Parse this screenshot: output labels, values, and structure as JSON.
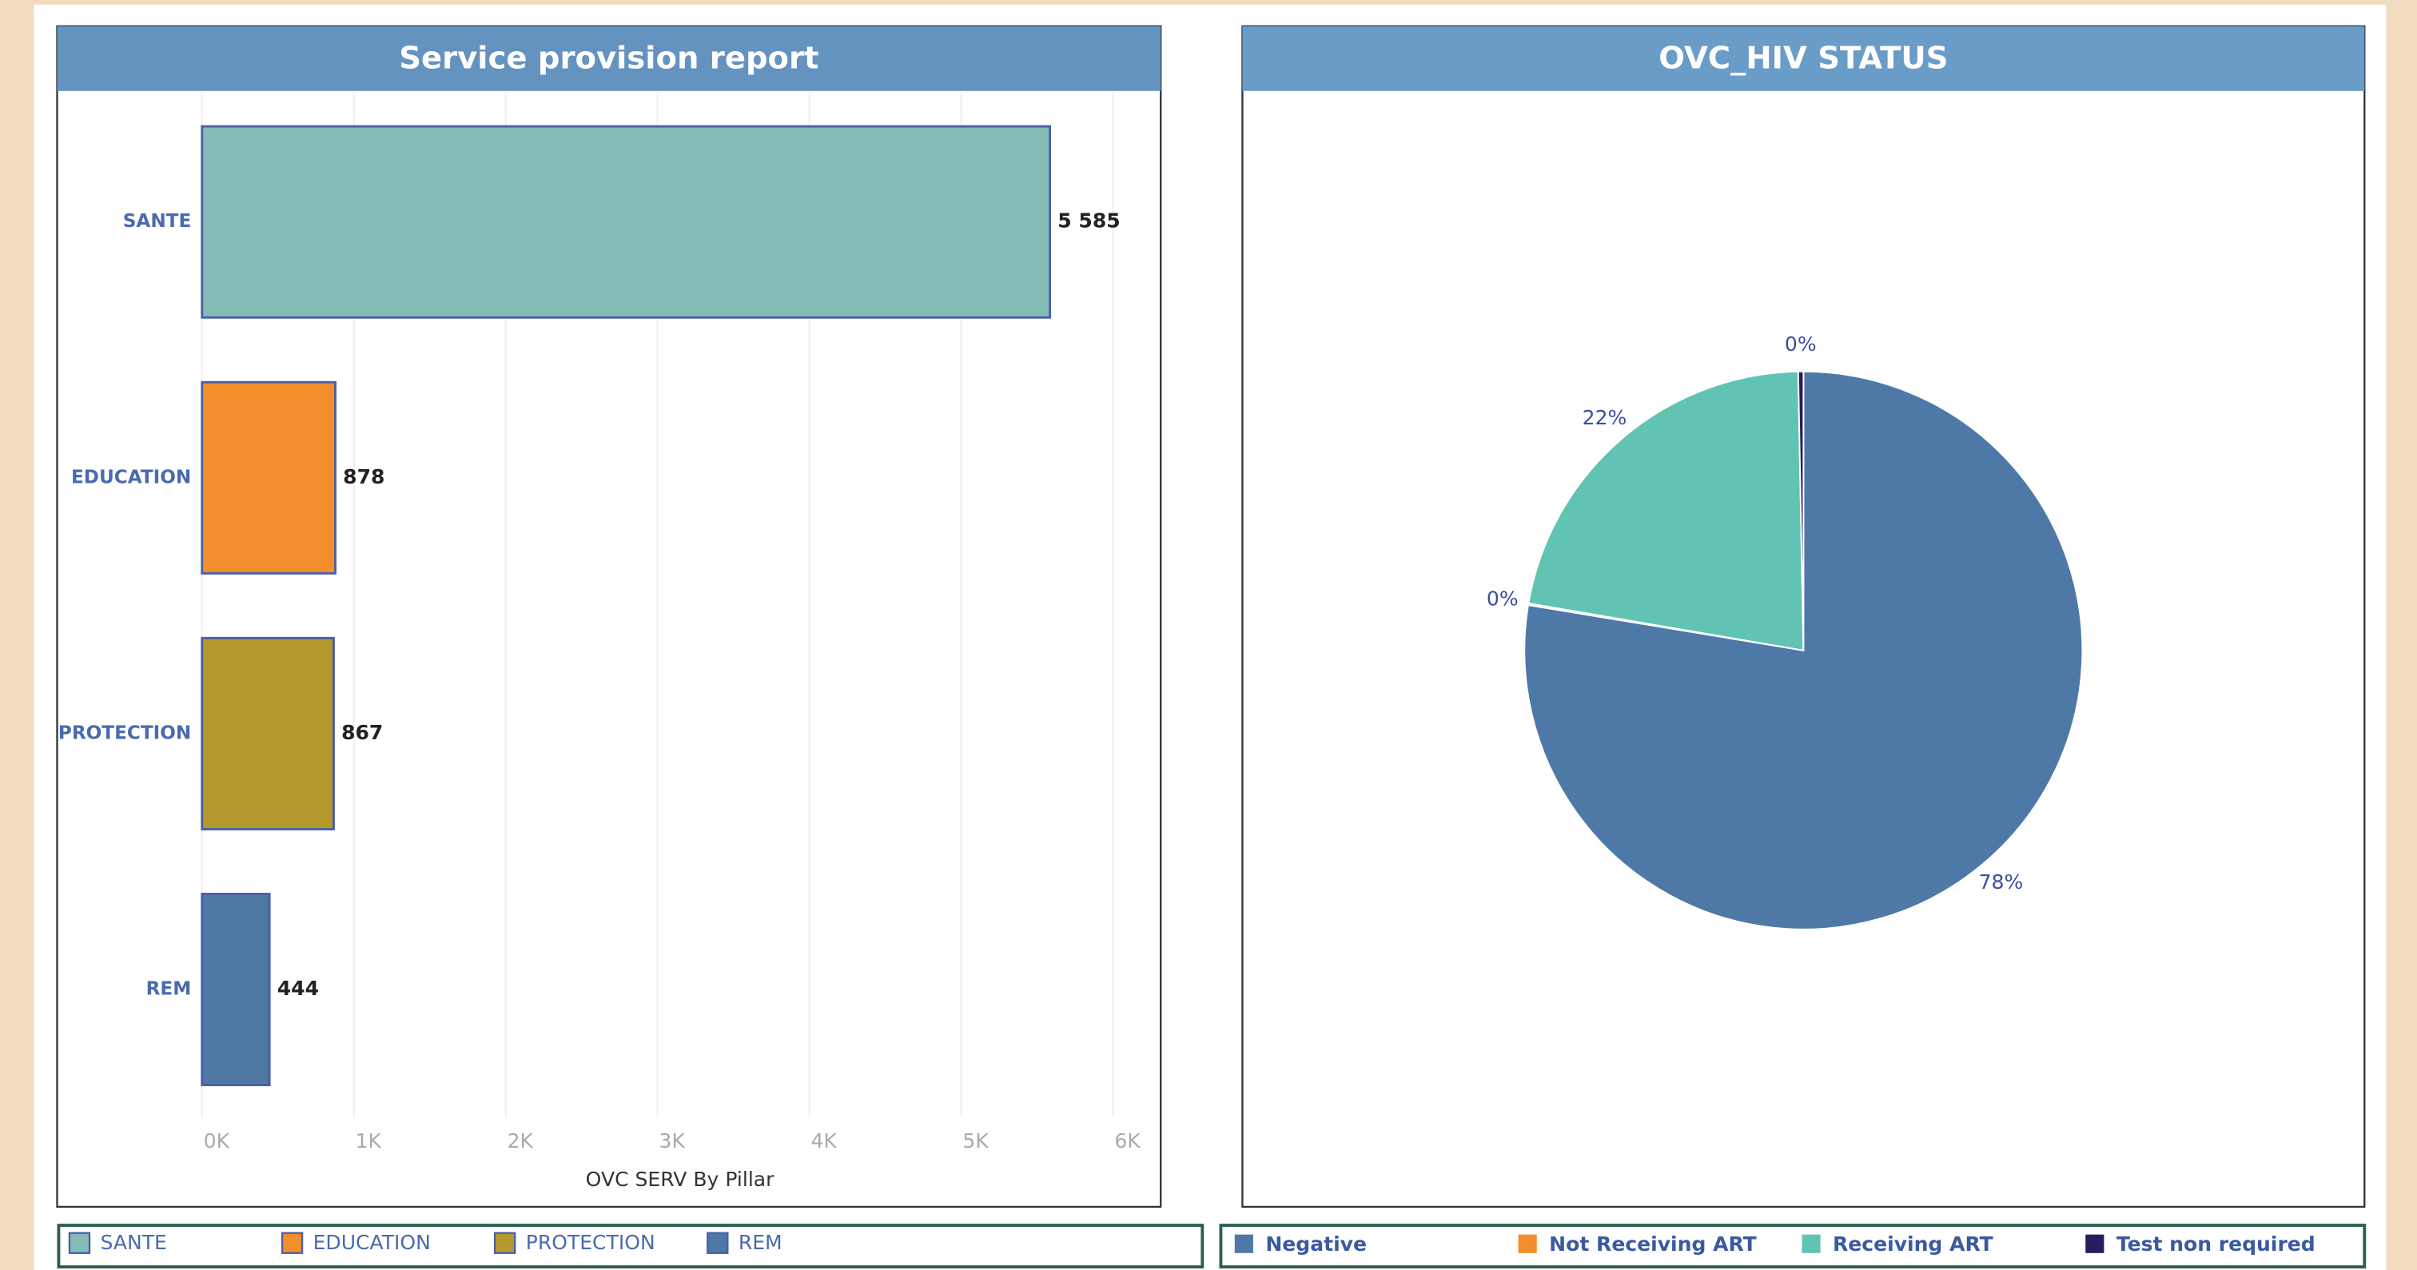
{
  "chart_data": [
    {
      "type": "hbar",
      "title": "Service provision report",
      "xlabel": "OVC SERV By Pillar",
      "categories": [
        "SANTE",
        "EDUCATION",
        "PROTECTION",
        "REM"
      ],
      "values": [
        5585,
        878,
        867,
        444
      ],
      "value_labels": [
        "5 585",
        "878",
        "867",
        "444"
      ],
      "colors": [
        "#86bcb6",
        "#f28e2b",
        "#b6992d",
        "#4e79a7"
      ],
      "xlim": [
        0,
        6000
      ],
      "xticks": [
        {
          "value": 0,
          "label": "0K"
        },
        {
          "value": 1000,
          "label": "1K"
        },
        {
          "value": 2000,
          "label": "2K"
        },
        {
          "value": 3000,
          "label": "3K"
        },
        {
          "value": 4000,
          "label": "4K"
        },
        {
          "value": 5000,
          "label": "5K"
        },
        {
          "value": 6000,
          "label": "6K"
        }
      ],
      "grid": true
    },
    {
      "type": "pie",
      "title": "OVC_HIV STATUS",
      "categories": [
        "Negative",
        "Not Receiving ART",
        "Receiving ART",
        "Test non required"
      ],
      "values": [
        77.6,
        0.1,
        22.0,
        0.3
      ],
      "value_labels": [
        "78%",
        "0%",
        "22%",
        "0%"
      ],
      "colors": [
        "#4e79a7",
        "#f28e2b",
        "#61c3b4",
        "#2a1a5e"
      ]
    }
  ]
}
